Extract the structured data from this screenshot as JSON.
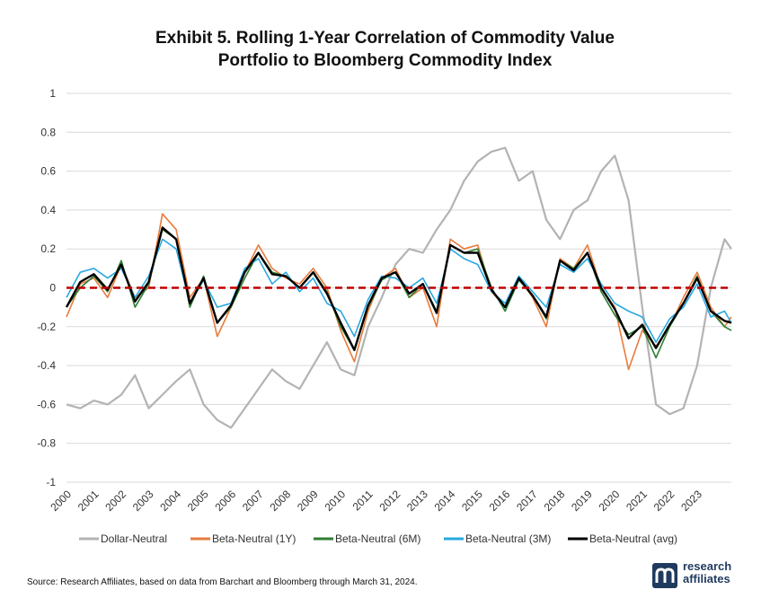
{
  "title_line1": "Exhibit 5. Rolling 1-Year Correlation of Commodity Value",
  "title_line2": "Portfolio to Bloomberg Commodity Index",
  "source": "Source: Research Affiliates, based on data from Barchart and Bloomberg through March 31, 2024.",
  "logo": {
    "line1": "research",
    "line2": "affiliates",
    "mark_icon": "research-affiliates-logo-icon",
    "registered": "®"
  },
  "chart_data": {
    "type": "line",
    "title": "Exhibit 5. Rolling 1-Year Correlation of Commodity Value Portfolio to Bloomberg Commodity Index",
    "ylim": [
      -1,
      1
    ],
    "xlim": [
      2000,
      2024.25
    ],
    "y_ticks": [
      "1",
      "0.8",
      "0.6",
      "0.4",
      "0.2",
      "0",
      "-0.2",
      "-0.4",
      "-0.6",
      "-0.8",
      "-1"
    ],
    "x_ticks": [
      "2000",
      "2001",
      "2002",
      "2003",
      "2004",
      "2005",
      "2006",
      "2007",
      "2008",
      "2009",
      "2010",
      "2011",
      "2012",
      "2013",
      "2014",
      "2015",
      "2016",
      "2017",
      "2018",
      "2019",
      "2020",
      "2021",
      "2022",
      "2023"
    ],
    "grid": "horizontal",
    "legend_position": "bottom",
    "reference_line": {
      "y": 0,
      "color": "#c00000",
      "style": "dashed"
    },
    "series": [
      {
        "name": "Dollar-Neutral",
        "color": "#b3b3b3",
        "x": [
          2000,
          2000.5,
          2001,
          2001.5,
          2002,
          2002.5,
          2003,
          2003.5,
          2004,
          2004.5,
          2005,
          2005.5,
          2006,
          2006.5,
          2007,
          2007.5,
          2008,
          2008.5,
          2009,
          2009.5,
          2010,
          2010.5,
          2011,
          2011.5,
          2012,
          2012.5,
          2013,
          2013.5,
          2014,
          2014.5,
          2015,
          2015.5,
          2016,
          2016.5,
          2017,
          2017.5,
          2018,
          2018.5,
          2019,
          2019.5,
          2020,
          2020.5,
          2021,
          2021.5,
          2022,
          2022.5,
          2023,
          2023.5,
          2024,
          2024.25
        ],
        "y": [
          -0.6,
          -0.62,
          -0.58,
          -0.6,
          -0.55,
          -0.45,
          -0.62,
          -0.55,
          -0.48,
          -0.42,
          -0.6,
          -0.68,
          -0.72,
          -0.62,
          -0.52,
          -0.42,
          -0.48,
          -0.52,
          -0.4,
          -0.28,
          -0.42,
          -0.45,
          -0.2,
          -0.05,
          0.12,
          0.2,
          0.18,
          0.3,
          0.4,
          0.55,
          0.65,
          0.7,
          0.72,
          0.55,
          0.6,
          0.35,
          0.25,
          0.4,
          0.45,
          0.6,
          0.68,
          0.45,
          -0.1,
          -0.6,
          -0.65,
          -0.62,
          -0.4,
          0.0,
          0.25,
          0.2
        ]
      },
      {
        "name": "Beta-Neutral (1Y)",
        "color": "#e87b3c",
        "x": [
          2000,
          2000.5,
          2001,
          2001.5,
          2002,
          2002.5,
          2003,
          2003.5,
          2004,
          2004.5,
          2005,
          2005.5,
          2006,
          2006.5,
          2007,
          2007.5,
          2008,
          2008.5,
          2009,
          2009.5,
          2010,
          2010.5,
          2011,
          2011.5,
          2012,
          2012.5,
          2013,
          2013.5,
          2014,
          2014.5,
          2015,
          2015.5,
          2016,
          2016.5,
          2017,
          2017.5,
          2018,
          2018.5,
          2019,
          2019.5,
          2020,
          2020.5,
          2021,
          2021.5,
          2022,
          2022.5,
          2023,
          2023.5,
          2024,
          2024.25
        ],
        "y": [
          -0.15,
          0.02,
          0.05,
          -0.05,
          0.12,
          -0.05,
          0.0,
          0.38,
          0.3,
          -0.05,
          0.05,
          -0.25,
          -0.1,
          0.08,
          0.22,
          0.1,
          0.05,
          0.02,
          0.1,
          0.0,
          -0.22,
          -0.38,
          -0.12,
          0.05,
          0.1,
          -0.05,
          0.0,
          -0.2,
          0.25,
          0.2,
          0.22,
          -0.02,
          -0.1,
          0.05,
          -0.05,
          -0.2,
          0.15,
          0.1,
          0.22,
          0.0,
          -0.1,
          -0.42,
          -0.22,
          -0.3,
          -0.2,
          -0.05,
          0.08,
          -0.1,
          -0.2,
          -0.15
        ]
      },
      {
        "name": "Beta-Neutral (6M)",
        "color": "#2e7d32",
        "x": [
          2000,
          2000.5,
          2001,
          2001.5,
          2002,
          2002.5,
          2003,
          2003.5,
          2004,
          2004.5,
          2005,
          2005.5,
          2006,
          2006.5,
          2007,
          2007.5,
          2008,
          2008.5,
          2009,
          2009.5,
          2010,
          2010.5,
          2011,
          2011.5,
          2012,
          2012.5,
          2013,
          2013.5,
          2014,
          2014.5,
          2015,
          2015.5,
          2016,
          2016.5,
          2017,
          2017.5,
          2018,
          2018.5,
          2019,
          2019.5,
          2020,
          2020.5,
          2021,
          2021.5,
          2022,
          2022.5,
          2023,
          2023.5,
          2024,
          2024.25
        ],
        "y": [
          -0.1,
          0.0,
          0.06,
          -0.02,
          0.14,
          -0.1,
          0.02,
          0.3,
          0.25,
          -0.1,
          0.06,
          -0.18,
          -0.1,
          0.05,
          0.18,
          0.08,
          0.06,
          0.0,
          0.08,
          -0.02,
          -0.2,
          -0.32,
          -0.1,
          0.04,
          0.08,
          -0.05,
          0.02,
          -0.12,
          0.22,
          0.18,
          0.2,
          0.0,
          -0.12,
          0.04,
          -0.04,
          -0.16,
          0.14,
          0.1,
          0.18,
          -0.02,
          -0.14,
          -0.24,
          -0.2,
          -0.36,
          -0.2,
          -0.08,
          0.06,
          -0.12,
          -0.2,
          -0.22
        ]
      },
      {
        "name": "Beta-Neutral (3M)",
        "color": "#29a8e0",
        "x": [
          2000,
          2000.5,
          2001,
          2001.5,
          2002,
          2002.5,
          2003,
          2003.5,
          2004,
          2004.5,
          2005,
          2005.5,
          2006,
          2006.5,
          2007,
          2007.5,
          2008,
          2008.5,
          2009,
          2009.5,
          2010,
          2010.5,
          2011,
          2011.5,
          2012,
          2012.5,
          2013,
          2013.5,
          2014,
          2014.5,
          2015,
          2015.5,
          2016,
          2016.5,
          2017,
          2017.5,
          2018,
          2018.5,
          2019,
          2019.5,
          2020,
          2020.5,
          2021,
          2021.5,
          2022,
          2022.5,
          2023,
          2023.5,
          2024,
          2024.25
        ],
        "y": [
          -0.05,
          0.08,
          0.1,
          0.05,
          0.1,
          -0.05,
          0.06,
          0.25,
          0.2,
          -0.08,
          0.04,
          -0.1,
          -0.08,
          0.1,
          0.15,
          0.02,
          0.08,
          -0.02,
          0.05,
          -0.08,
          -0.12,
          -0.25,
          -0.06,
          0.06,
          0.05,
          0.0,
          0.05,
          -0.08,
          0.2,
          0.15,
          0.12,
          -0.02,
          -0.08,
          0.06,
          -0.02,
          -0.1,
          0.12,
          0.08,
          0.15,
          0.02,
          -0.08,
          -0.12,
          -0.15,
          -0.28,
          -0.16,
          -0.1,
          0.02,
          -0.15,
          -0.12,
          -0.18
        ]
      },
      {
        "name": "Beta-Neutral (avg)",
        "color": "#000000",
        "x": [
          2000,
          2000.5,
          2001,
          2001.5,
          2002,
          2002.5,
          2003,
          2003.5,
          2004,
          2004.5,
          2005,
          2005.5,
          2006,
          2006.5,
          2007,
          2007.5,
          2008,
          2008.5,
          2009,
          2009.5,
          2010,
          2010.5,
          2011,
          2011.5,
          2012,
          2012.5,
          2013,
          2013.5,
          2014,
          2014.5,
          2015,
          2015.5,
          2016,
          2016.5,
          2017,
          2017.5,
          2018,
          2018.5,
          2019,
          2019.5,
          2020,
          2020.5,
          2021,
          2021.5,
          2022,
          2022.5,
          2023,
          2023.5,
          2024,
          2024.25
        ],
        "y": [
          -0.1,
          0.03,
          0.07,
          -0.01,
          0.12,
          -0.07,
          0.03,
          0.31,
          0.25,
          -0.08,
          0.05,
          -0.18,
          -0.09,
          0.08,
          0.18,
          0.07,
          0.06,
          0.0,
          0.08,
          -0.03,
          -0.18,
          -0.32,
          -0.09,
          0.05,
          0.08,
          -0.03,
          0.02,
          -0.13,
          0.22,
          0.18,
          0.18,
          -0.01,
          -0.1,
          0.05,
          -0.04,
          -0.15,
          0.14,
          0.09,
          0.18,
          0.0,
          -0.11,
          -0.26,
          -0.19,
          -0.31,
          -0.19,
          -0.08,
          0.05,
          -0.12,
          -0.17,
          -0.18
        ]
      }
    ]
  }
}
